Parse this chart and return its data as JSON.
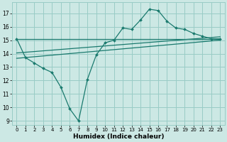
{
  "title": "",
  "xlabel": "Humidex (Indice chaleur)",
  "bg_color": "#cce8e4",
  "grid_color": "#99ccc6",
  "line_color": "#1a7a6e",
  "xlim": [
    -0.5,
    23.5
  ],
  "ylim": [
    8.7,
    17.8
  ],
  "xticks": [
    0,
    1,
    2,
    3,
    4,
    5,
    6,
    7,
    8,
    9,
    10,
    11,
    12,
    13,
    14,
    15,
    16,
    17,
    18,
    19,
    20,
    21,
    22,
    23
  ],
  "yticks": [
    9,
    10,
    11,
    12,
    13,
    14,
    15,
    16,
    17
  ],
  "main_x": [
    0,
    1,
    2,
    3,
    4,
    5,
    6,
    7,
    8,
    9,
    10,
    11,
    12,
    13,
    14,
    15,
    16,
    17,
    18,
    19,
    20,
    21,
    22,
    23
  ],
  "main_y": [
    15.1,
    13.7,
    13.3,
    12.9,
    12.6,
    11.5,
    9.9,
    9.0,
    12.1,
    13.9,
    14.8,
    15.0,
    15.9,
    15.8,
    16.5,
    17.3,
    17.2,
    16.4,
    15.9,
    15.8,
    15.5,
    15.3,
    15.1,
    15.1
  ],
  "line1_start": 15.1,
  "line1_end": 15.1,
  "line2_start": 14.05,
  "line2_end": 15.25,
  "line3_start": 13.65,
  "line3_end": 15.0
}
